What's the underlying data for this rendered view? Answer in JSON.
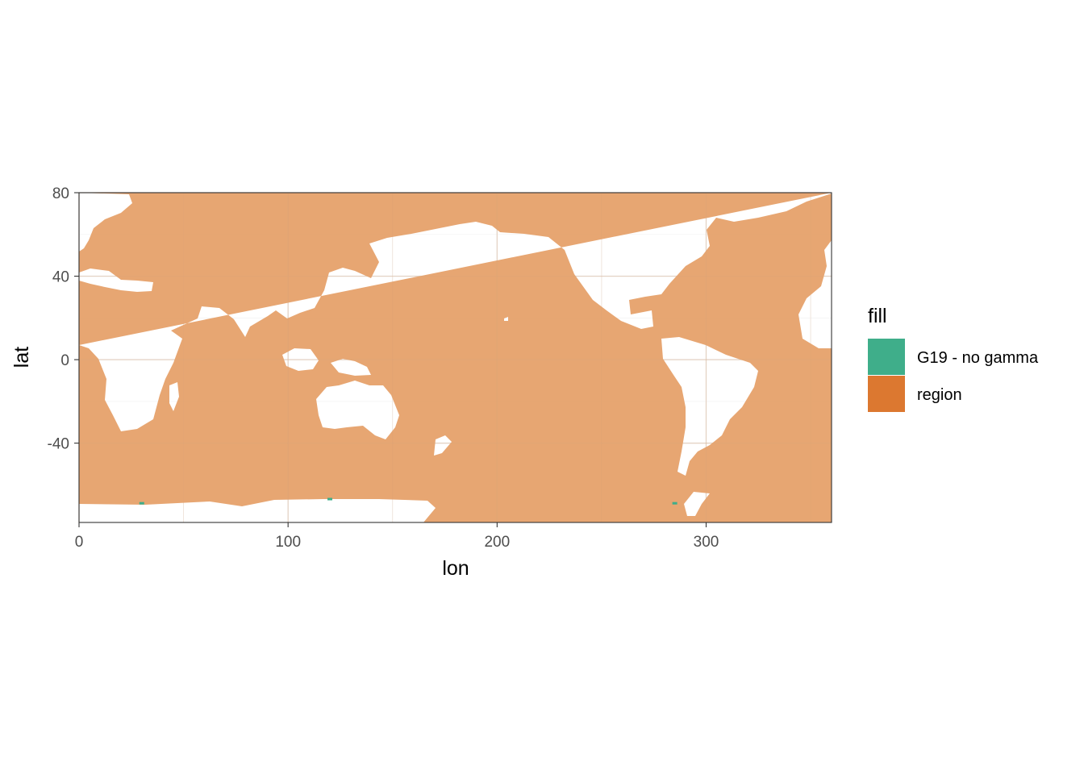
{
  "chart_data": {
    "type": "heatmap",
    "title": "",
    "xlabel": "lon",
    "ylabel": "lat",
    "xlim": [
      0,
      360
    ],
    "ylim": [
      -78,
      80
    ],
    "x_ticks": [
      0,
      100,
      200,
      300
    ],
    "x_tick_labels": [
      "0",
      "100",
      "200",
      "300"
    ],
    "y_ticks": [
      -40,
      0,
      40,
      80
    ],
    "y_tick_labels": [
      "-40",
      "0",
      "40",
      "80"
    ],
    "grid": true,
    "legend": {
      "title": "fill",
      "placement": "right",
      "entries": [
        {
          "label": "G19 - no gamma",
          "color": "#3fae8a"
        },
        {
          "label": "region",
          "color": "#dc7830"
        }
      ]
    },
    "ocean_fill_color": "#e59e66",
    "description": "Global ocean grid cells classified as region; a few small cells near the Antarctic coast are G19 - no gamma",
    "g19_cells": [
      {
        "lon": 30,
        "lat": -69
      },
      {
        "lon": 120,
        "lat": -67
      },
      {
        "lon": 285,
        "lat": -69
      }
    ]
  }
}
